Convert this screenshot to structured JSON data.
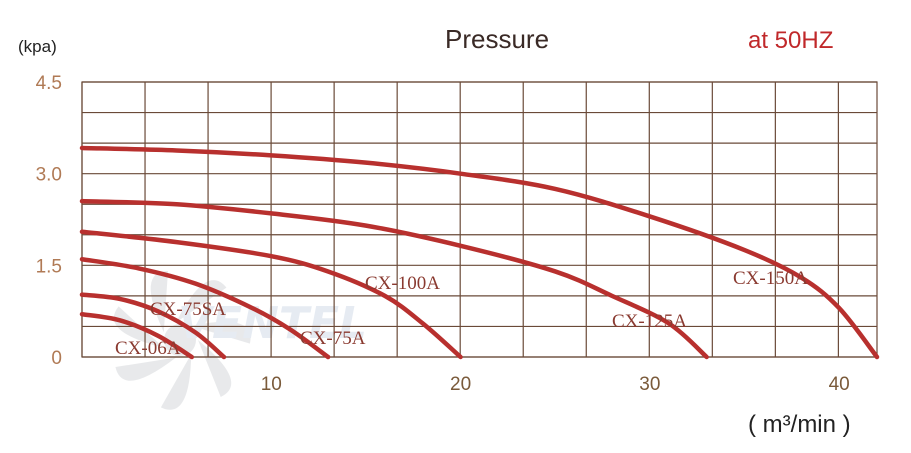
{
  "chart_data": {
    "type": "line",
    "title": "Pressure",
    "frequency_note": "at 50HZ",
    "ylabel": "(kpa)",
    "xlabel": "( m³/min )",
    "xlim": [
      0,
      42
    ],
    "ylim": [
      0,
      4.5
    ],
    "x_tick_labels": [
      "10",
      "20",
      "30",
      "40"
    ],
    "y_tick_labels": [
      "0",
      "1.5",
      "3.0",
      "4.5"
    ],
    "grid": true,
    "series": [
      {
        "name": "CX-150A",
        "x": [
          0,
          5,
          10,
          15,
          20,
          25,
          30,
          35,
          38,
          40,
          42
        ],
        "y": [
          3.42,
          3.38,
          3.3,
          3.18,
          3.0,
          2.75,
          2.3,
          1.75,
          1.3,
          0.8,
          0.0
        ]
      },
      {
        "name": "CX-125A",
        "x": [
          0,
          5,
          10,
          15,
          20,
          25,
          28,
          31,
          33
        ],
        "y": [
          2.55,
          2.5,
          2.35,
          2.15,
          1.82,
          1.4,
          1.0,
          0.55,
          0.0
        ]
      },
      {
        "name": "CX-100A",
        "x": [
          0,
          5,
          10,
          13,
          16,
          18,
          20
        ],
        "y": [
          2.05,
          1.88,
          1.65,
          1.4,
          1.0,
          0.55,
          0.0
        ]
      },
      {
        "name": "CX-75A",
        "x": [
          0,
          3,
          6,
          9,
          11,
          13
        ],
        "y": [
          1.6,
          1.45,
          1.2,
          0.8,
          0.45,
          0.0
        ]
      },
      {
        "name": "CX-75SA",
        "x": [
          0,
          2,
          4,
          6,
          7.5
        ],
        "y": [
          1.02,
          0.95,
          0.75,
          0.4,
          0.0
        ]
      },
      {
        "name": "CX-06A",
        "x": [
          0,
          2,
          4,
          5.8
        ],
        "y": [
          0.7,
          0.6,
          0.35,
          0.0
        ]
      }
    ]
  },
  "watermark": "VENTEL",
  "colors": {
    "curve": "#b8302e",
    "grid": "#6a4a38",
    "accent": "#c0282a"
  }
}
